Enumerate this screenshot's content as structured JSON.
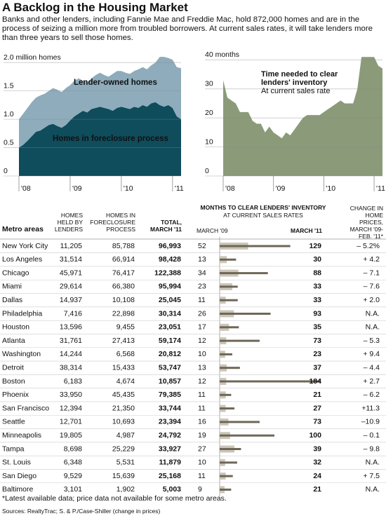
{
  "title": "A Backlog in the Housing Market",
  "intro": "Banks and other lenders, including Fannie Mae and Freddie Mac, hold 872,000 homes and are in the process of seizing a million more from troubled borrowers. At current sales rates, it will take lenders more than three years to sell those homes.",
  "chart_data": [
    {
      "type": "area",
      "stacked": true,
      "categories": [
        "'08",
        null,
        null,
        null,
        null,
        null,
        null,
        null,
        null,
        null,
        null,
        null,
        "'09",
        null,
        null,
        null,
        null,
        null,
        null,
        null,
        null,
        null,
        null,
        null,
        "'10",
        null,
        null,
        null,
        null,
        null,
        null,
        null,
        null,
        null,
        null,
        null,
        "'11",
        null,
        null
      ],
      "series": [
        {
          "name": "Homes in foreclosure process",
          "color": "#0f4c5c",
          "values": [
            0.5,
            0.55,
            0.62,
            0.7,
            0.78,
            0.8,
            0.85,
            0.9,
            0.92,
            0.88,
            0.85,
            0.9,
            0.98,
            1.05,
            1.1,
            1.15,
            1.12,
            1.18,
            1.2,
            1.22,
            1.2,
            1.18,
            1.15,
            1.2,
            1.22,
            1.2,
            1.18,
            1.22,
            1.2,
            1.25,
            1.22,
            1.28,
            1.3,
            1.25,
            1.22,
            1.25,
            1.2,
            1.05,
            1.0
          ]
        },
        {
          "name": "Lender-owned homes",
          "color": "#8eacbb",
          "values": [
            0.5,
            0.55,
            0.58,
            0.6,
            0.6,
            0.62,
            0.6,
            0.6,
            0.63,
            0.64,
            0.63,
            0.65,
            0.62,
            0.63,
            0.62,
            0.53,
            0.53,
            0.54,
            0.58,
            0.6,
            0.58,
            0.57,
            0.65,
            0.65,
            0.63,
            0.62,
            0.62,
            0.63,
            0.68,
            0.67,
            0.66,
            0.67,
            0.7,
            0.85,
            0.88,
            0.83,
            0.85,
            0.87,
            0.9
          ]
        }
      ],
      "ylim": [
        0,
        2.2
      ],
      "yticks": [
        0,
        0.5,
        {
          "value": 1,
          "label": "1.0"
        },
        1.5,
        {
          "value": 2,
          "label": "2.0 million homes"
        }
      ],
      "grid": true
    },
    {
      "type": "area",
      "categories": [
        "'08",
        null,
        null,
        null,
        null,
        null,
        null,
        null,
        null,
        null,
        null,
        null,
        "'09",
        null,
        null,
        null,
        null,
        null,
        null,
        null,
        null,
        null,
        null,
        null,
        "'10",
        null,
        null,
        null,
        null,
        null,
        null,
        null,
        null,
        null,
        null,
        null,
        "'11",
        null,
        null
      ],
      "values": [
        33,
        27,
        26,
        25,
        22,
        22,
        22,
        19,
        18,
        18,
        15,
        17,
        15,
        14,
        13,
        15,
        14,
        16,
        18,
        20,
        21,
        21,
        21,
        21,
        22,
        23,
        24,
        25,
        26,
        25,
        25,
        25,
        30,
        41,
        41,
        41,
        41,
        38,
        37
      ],
      "color": "#8b9b79",
      "ylim": [
        0,
        43
      ],
      "yticks": [
        0,
        10,
        20,
        30,
        {
          "value": 40,
          "label": "40 months"
        }
      ],
      "grid": true,
      "annotation": [
        "Time needed to clear",
        "lenders' inventory"
      ],
      "subannotation": "At current sales rate"
    }
  ],
  "table": {
    "header": {
      "metro": "Metro areas",
      "held": "HOMES HELD BY LENDERS",
      "foreclosure": "HOMES IN FORECLOSURE PROCESS",
      "total": "TOTAL, MARCH '11",
      "months": "MONTHS TO CLEAR LENDERS' INVENTORY",
      "months_sub": "AT CURRENT SALES RATES",
      "m09": "MARCH '09",
      "m11": "MARCH '11",
      "change": "CHANGE IN HOME PRICES, MARCH '09-FEB. '11*"
    },
    "rows": [
      [
        "New York City",
        "11,205",
        "85,788",
        "96,993",
        52,
        129,
        "– 5.2%"
      ],
      [
        "Los Angeles",
        "31,514",
        "66,914",
        "98,428",
        13,
        30,
        "+ 4.2"
      ],
      [
        "Chicago",
        "45,971",
        "76,417",
        "122,388",
        34,
        88,
        "– 7.1"
      ],
      [
        "Miami",
        "29,614",
        "66,380",
        "95,994",
        23,
        33,
        "– 7.6"
      ],
      [
        "Dallas",
        "14,937",
        "10,108",
        "25,045",
        11,
        33,
        "+ 2.0"
      ],
      [
        "Philadelphia",
        "7,416",
        "22,898",
        "30,314",
        26,
        93,
        "N.A."
      ],
      [
        "Houston",
        "13,596",
        "9,455",
        "23,051",
        17,
        35,
        "N.A."
      ],
      [
        "Atlanta",
        "31,761",
        "27,413",
        "59,174",
        12,
        73,
        "– 5.3"
      ],
      [
        "Washington",
        "14,244",
        "6,568",
        "20,812",
        10,
        23,
        "+ 9.4"
      ],
      [
        "Detroit",
        "38,314",
        "15,433",
        "53,747",
        13,
        37,
        "– 4.4"
      ],
      [
        "Boston",
        "6,183",
        "4,674",
        "10,857",
        12,
        184,
        "+ 2.7"
      ],
      [
        "Phoenix",
        "33,950",
        "45,435",
        "79,385",
        11,
        21,
        "– 6.2"
      ],
      [
        "San Francisco",
        "12,394",
        "21,350",
        "33,744",
        11,
        27,
        "+11.3"
      ],
      [
        "Seattle",
        "12,701",
        "10,693",
        "23,394",
        16,
        73,
        "–10.9"
      ],
      [
        "Minneapolis",
        "19,805",
        "4,987",
        "24,792",
        19,
        100,
        "– 0.1"
      ],
      [
        "Tampa",
        "8,698",
        "25,229",
        "33,927",
        27,
        39,
        "– 9.8"
      ],
      [
        "St. Louis",
        "6,348",
        "5,531",
        "11,879",
        10,
        32,
        "N.A."
      ],
      [
        "San Diego",
        "9,529",
        "15,639",
        "25,168",
        11,
        24,
        "+ 7.5"
      ],
      [
        "Baltimore",
        "3,101",
        "1,902",
        "5,003",
        9,
        21,
        "N.A."
      ]
    ]
  },
  "footnote": "*Latest available data; price data not available for some metro areas.",
  "source": "Sources: RealtyTrac; S. & P./Case-Shiller (change in prices)"
}
